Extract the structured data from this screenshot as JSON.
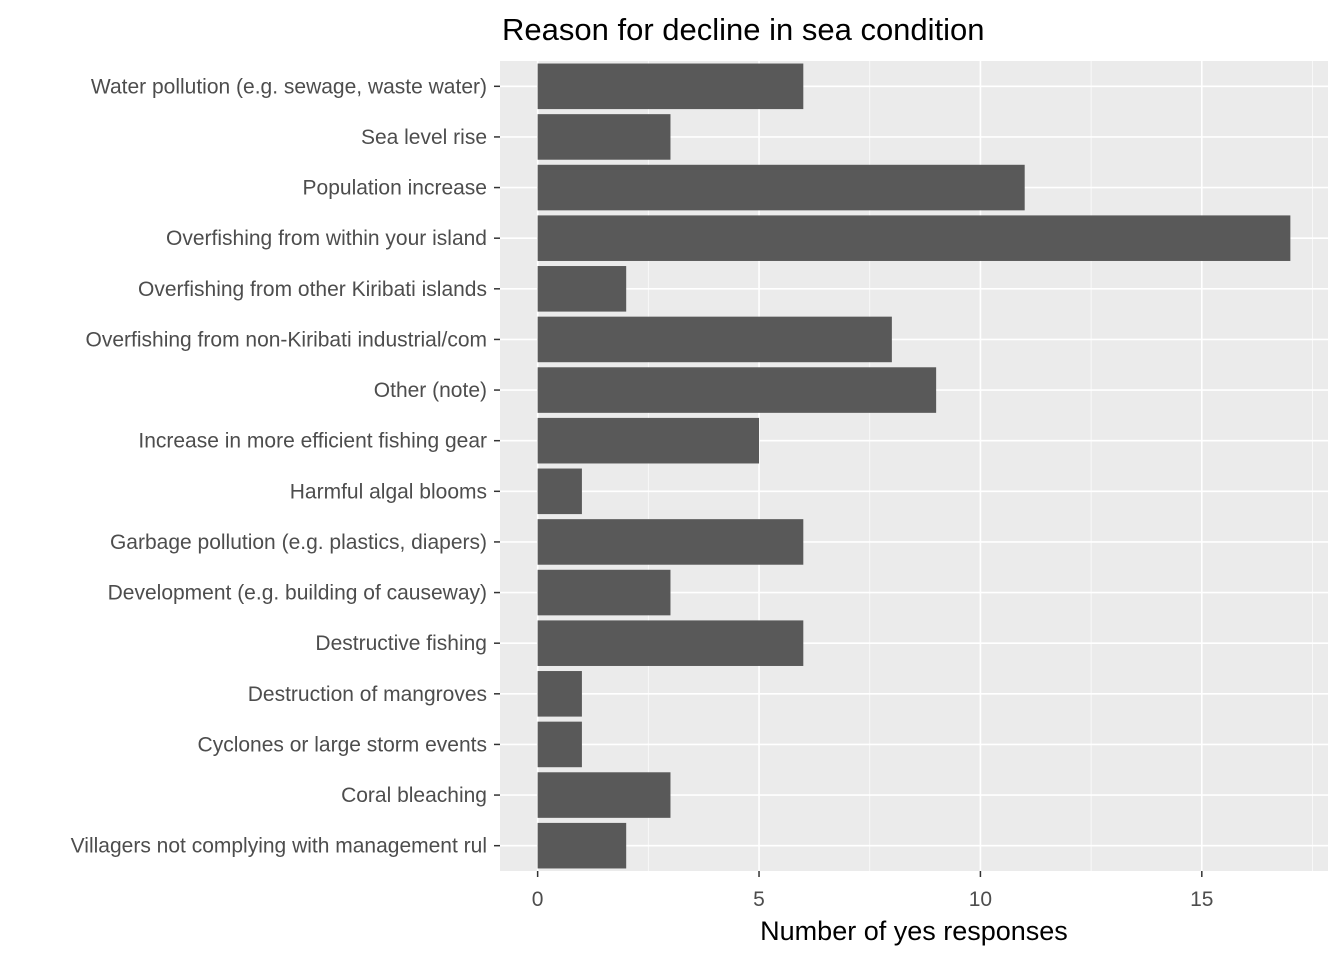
{
  "chart_data": {
    "type": "bar",
    "orientation": "horizontal",
    "title": "Reason for decline in sea condition",
    "xlabel": "Number of yes responses",
    "ylabel": "",
    "categories": [
      "Water pollution (e.g. sewage, waste water)",
      "Sea level rise",
      "Population increase",
      "Overfishing from within your island",
      "Overfishing from other Kiribati islands",
      "Overfishing from non-Kiribati industrial/com",
      "Other (note)",
      "Increase in more efficient fishing gear",
      "Harmful algal blooms",
      "Garbage pollution (e.g. plastics, diapers)",
      "Development (e.g. building of causeway)",
      "Destructive fishing",
      "Destruction of mangroves",
      "Cyclones or large storm events",
      "Coral bleaching",
      "Villagers not complying with management rul"
    ],
    "values": [
      6,
      3,
      11,
      17,
      2,
      8,
      9,
      5,
      1,
      6,
      3,
      6,
      1,
      1,
      3,
      2
    ],
    "xlim": [
      -0.85,
      17.85
    ],
    "xticks": [
      0,
      5,
      10,
      15
    ],
    "xtick_labels": [
      "0",
      "5",
      "10",
      "15"
    ],
    "grid": true,
    "legend": "none",
    "colors": {
      "bar": "#595959",
      "panel": "#ebebeb",
      "grid_major": "#ffffff",
      "text": "#4d4d4d"
    }
  }
}
